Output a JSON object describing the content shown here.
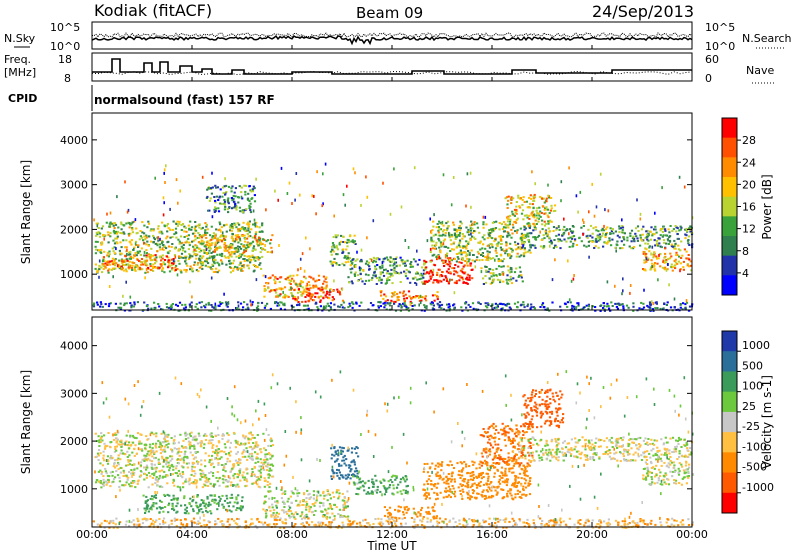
{
  "header": {
    "station": "Kodiak (fitACF)",
    "beam": "Beam 09",
    "date": "24/Sep/2013"
  },
  "noise_panel": {
    "left_label": "N.Sky",
    "right_label": "N.Search",
    "left_ticks": [
      "10^5",
      "10^0"
    ],
    "right_ticks": [
      "10^5",
      "10^0"
    ]
  },
  "freq_panel": {
    "left_label_1": "Freq.",
    "left_label_2": "[MHz]",
    "right_label": "Nave",
    "left_ticks": [
      "18",
      "8"
    ],
    "right_ticks": [
      "60",
      "0"
    ]
  },
  "cpid": {
    "label": "CPID",
    "value": "normalsound (fast) 157 RF"
  },
  "colors": {
    "power_scale": [
      "#0000ff",
      "#2233aa",
      "#2f7f4f",
      "#3aa23a",
      "#b9d430",
      "#ffc000",
      "#ff8c00",
      "#ff5000",
      "#ff0000"
    ],
    "velocity_scale": [
      "#1f3aa8",
      "#2a6f9a",
      "#3b9b5a",
      "#6cc83c",
      "#c7c7c7",
      "#ffbf40",
      "#ff8a00",
      "#ff5a00",
      "#ff0000"
    ]
  },
  "chart_data": [
    {
      "type": "heatmap",
      "panel": "power",
      "ylabel": "Slant Range [km]",
      "xlim": [
        "00:00",
        "00:00"
      ],
      "ylim": [
        200,
        4600
      ],
      "y_ticks": [
        "1000",
        "2000",
        "3000",
        "4000"
      ],
      "colorbar": {
        "label": "Power [dB]",
        "ticks": [
          "4",
          "8",
          "12",
          "16",
          "20",
          "24",
          "28"
        ],
        "range": [
          0,
          30
        ]
      },
      "bands": [
        {
          "t_start": 0.1,
          "t_end": 6.8,
          "r_start": 1050,
          "r_end": 2200,
          "value": 14
        },
        {
          "t_start": 0.3,
          "t_end": 3.5,
          "r_start": 1100,
          "r_end": 1450,
          "value": 22
        },
        {
          "t_start": 4.0,
          "t_end": 7.2,
          "r_start": 1500,
          "r_end": 1900,
          "value": 18
        },
        {
          "t_start": 4.5,
          "t_end": 6.5,
          "r_start": 2400,
          "r_end": 3000,
          "value": 9
        },
        {
          "t_start": 6.8,
          "t_end": 9.5,
          "r_start": 500,
          "r_end": 1000,
          "value": 20
        },
        {
          "t_start": 8.0,
          "t_end": 10.0,
          "r_start": 400,
          "r_end": 700,
          "value": 26
        },
        {
          "t_start": 9.5,
          "t_end": 10.5,
          "r_start": 1200,
          "r_end": 1900,
          "value": 12
        },
        {
          "t_start": 10.2,
          "t_end": 13.3,
          "r_start": 800,
          "r_end": 1400,
          "value": 10
        },
        {
          "t_start": 11.5,
          "t_end": 13.8,
          "r_start": 400,
          "r_end": 650,
          "value": 24
        },
        {
          "t_start": 13.2,
          "t_end": 15.2,
          "r_start": 800,
          "r_end": 1400,
          "value": 28
        },
        {
          "t_start": 13.5,
          "t_end": 17.5,
          "r_start": 1300,
          "r_end": 2200,
          "value": 14
        },
        {
          "t_start": 15.5,
          "t_end": 17.2,
          "r_start": 800,
          "r_end": 1200,
          "value": 12
        },
        {
          "t_start": 17.0,
          "t_end": 24.0,
          "r_start": 1600,
          "r_end": 2100,
          "value": 11
        },
        {
          "t_start": 16.5,
          "t_end": 18.5,
          "r_start": 2100,
          "r_end": 2800,
          "value": 18
        },
        {
          "t_start": 22.0,
          "t_end": 24.0,
          "r_start": 1100,
          "r_end": 1600,
          "value": 20
        },
        {
          "t_start": 0.0,
          "t_end": 24.0,
          "r_start": 200,
          "r_end": 400,
          "value": 6
        }
      ]
    },
    {
      "type": "heatmap",
      "panel": "velocity",
      "xlabel": "Time UT",
      "ylabel": "Slant Range [km]",
      "xlim": [
        "00:00",
        "00:00"
      ],
      "ylim": [
        200,
        4600
      ],
      "x_ticks": [
        "00:00",
        "04:00",
        "08:00",
        "12:00",
        "16:00",
        "20:00",
        "00:00"
      ],
      "y_ticks": [
        "1000",
        "2000",
        "3000",
        "4000"
      ],
      "colorbar": {
        "label": "Velocity [m s-1]",
        "ticks": [
          "1000",
          "500",
          "100",
          "25",
          "-25",
          "-100",
          "-500",
          "-1000"
        ]
      },
      "bands": [
        {
          "t_start": 0.1,
          "t_end": 7.2,
          "r_start": 1050,
          "r_end": 2200,
          "value": 0
        },
        {
          "t_start": 2.0,
          "t_end": 6.0,
          "r_start": 500,
          "r_end": 900,
          "value": 150
        },
        {
          "t_start": 6.8,
          "t_end": 10.2,
          "r_start": 400,
          "r_end": 1000,
          "value": 10
        },
        {
          "t_start": 9.5,
          "t_end": 10.6,
          "r_start": 1200,
          "r_end": 1900,
          "value": 600
        },
        {
          "t_start": 10.4,
          "t_end": 12.6,
          "r_start": 900,
          "r_end": 1300,
          "value": 120
        },
        {
          "t_start": 11.6,
          "t_end": 13.8,
          "r_start": 400,
          "r_end": 650,
          "value": -300
        },
        {
          "t_start": 13.2,
          "t_end": 17.5,
          "r_start": 800,
          "r_end": 1600,
          "value": -400
        },
        {
          "t_start": 15.5,
          "t_end": 17.6,
          "r_start": 1500,
          "r_end": 2400,
          "value": -500
        },
        {
          "t_start": 17.2,
          "t_end": 18.8,
          "r_start": 2300,
          "r_end": 3100,
          "value": -600
        },
        {
          "t_start": 17.0,
          "t_end": 24.0,
          "r_start": 1600,
          "r_end": 2100,
          "value": 0
        },
        {
          "t_start": 22.0,
          "t_end": 24.0,
          "r_start": 1100,
          "r_end": 1600,
          "value": 0
        },
        {
          "t_start": 0.0,
          "t_end": 24.0,
          "r_start": 200,
          "r_end": 400,
          "value": -80
        }
      ]
    }
  ]
}
